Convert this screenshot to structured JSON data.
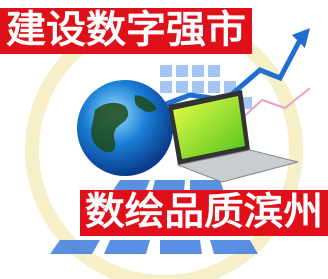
{
  "banner": {
    "top": "建设数字强市",
    "bottom": "数绘品质滨州"
  }
}
